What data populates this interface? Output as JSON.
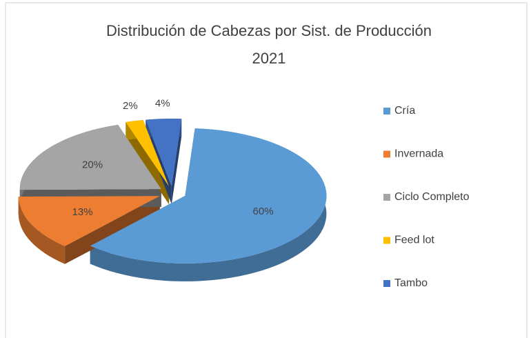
{
  "chart_data": {
    "type": "pie",
    "title": "Distribución de Cabezas por Sist. de Producción",
    "subtitle": "2021",
    "categories": [
      "Cría",
      "Invernada",
      "Ciclo Completo",
      "Feed lot",
      "Tambo"
    ],
    "values": [
      60,
      13,
      20,
      2,
      4
    ],
    "value_labels": [
      "60%",
      "13%",
      "20%",
      "2%",
      "4%"
    ],
    "colors": [
      "#5b9bd5",
      "#ed7d31",
      "#a5a5a5",
      "#ffc000",
      "#4472c4"
    ],
    "legend": "right"
  }
}
